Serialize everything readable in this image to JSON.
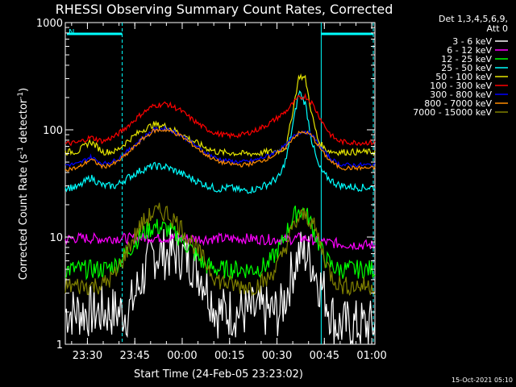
{
  "chart_data": {
    "type": "line",
    "title": "RHESSI Observing Summary Count Rates, Corrected",
    "xlabel": "Start Time (24-Feb-05 23:23:02)",
    "ylabel_main": "Corrected Count Rate (s",
    "ylabel_sup1": "-1",
    "ylabel_mid": " detector",
    "ylabel_sup2": "-1",
    "ylabel_end": ")",
    "yscale": "log",
    "ylim": [
      1,
      1000
    ],
    "xlim_minutes": [
      0,
      98
    ],
    "x_ticks": [
      {
        "t": 7,
        "label": "23:30"
      },
      {
        "t": 22,
        "label": "23:45"
      },
      {
        "t": 37,
        "label": "00:00"
      },
      {
        "t": 52,
        "label": "00:15"
      },
      {
        "t": 67,
        "label": "00:30"
      },
      {
        "t": 82,
        "label": "00:45"
      },
      {
        "t": 97,
        "label": "01:00"
      }
    ],
    "y_ticks": [
      {
        "v": 1,
        "label": "1"
      },
      {
        "v": 10,
        "label": "10"
      },
      {
        "v": 100,
        "label": "100"
      },
      {
        "v": 1000,
        "label": "1000"
      }
    ],
    "legend_header": [
      "Det 1,3,4,5,6,9,",
      "Att 0"
    ],
    "legend_placement": "right",
    "annotation_N": "N",
    "footer_date": "15-Oct-2021 05:10",
    "x": [
      0,
      4,
      8,
      12,
      16,
      20,
      24,
      28,
      32,
      36,
      40,
      44,
      48,
      52,
      56,
      60,
      64,
      68,
      70,
      72,
      74,
      76,
      78,
      80,
      82,
      84,
      86,
      88,
      92,
      96,
      98
    ],
    "series": [
      {
        "name": "3 - 6 keV",
        "color": "#ffffff",
        "values": [
          2,
          2,
          2,
          2,
          2,
          2,
          4,
          7,
          7,
          7,
          6,
          4,
          2,
          2,
          2,
          2,
          2,
          2,
          3,
          5,
          7,
          7,
          6,
          4,
          3,
          2,
          1.5,
          1.5,
          1.5,
          1.5,
          1.5
        ]
      },
      {
        "name": "6 - 12 keV",
        "color": "#ff00ff",
        "values": [
          9.5,
          9.8,
          9.7,
          9.6,
          9.8,
          9.7,
          9.8,
          9.9,
          9.8,
          9.8,
          9.7,
          9.6,
          9.7,
          9.6,
          9.7,
          9.6,
          9.5,
          9.5,
          9.4,
          9.6,
          9.8,
          9.7,
          9.5,
          9.2,
          9.0,
          8.8,
          8.7,
          8.6,
          8.5,
          8.4,
          8.4
        ]
      },
      {
        "name": "12 - 25 keV",
        "color": "#00ff00",
        "values": [
          5,
          5,
          5,
          5,
          5.5,
          7.5,
          10.5,
          12.5,
          12,
          10,
          7.5,
          5.5,
          5,
          5,
          5,
          5,
          5.5,
          8,
          11,
          15,
          18,
          17,
          13,
          9,
          6.5,
          5.5,
          5,
          5,
          5,
          5,
          5
        ]
      },
      {
        "name": "25 - 50 keV",
        "color": "#00ffff",
        "values": [
          29,
          29,
          36,
          30,
          30,
          36,
          42,
          46,
          45,
          40,
          35,
          31,
          28,
          29,
          27,
          28,
          31,
          37,
          55,
          110,
          230,
          175,
          80,
          47,
          38,
          34,
          31,
          30,
          29,
          29,
          29
        ]
      },
      {
        "name": "50 - 100 keV",
        "color": "#e6e600",
        "values": [
          62,
          63,
          78,
          62,
          63,
          80,
          98,
          112,
          108,
          94,
          80,
          69,
          62,
          61,
          60,
          60,
          62,
          64,
          70,
          150,
          320,
          300,
          140,
          80,
          67,
          63,
          62,
          62,
          62,
          62,
          62
        ]
      },
      {
        "name": "100 - 300 keV",
        "color": "#ff0000",
        "values": [
          74,
          76,
          85,
          78,
          88,
          110,
          140,
          168,
          175,
          155,
          126,
          104,
          92,
          88,
          90,
          98,
          112,
          135,
          150,
          175,
          200,
          205,
          180,
          140,
          110,
          90,
          80,
          77,
          76,
          76,
          76
        ]
      },
      {
        "name": "300 - 800 keV",
        "color": "#0000ff",
        "values": [
          47,
          48,
          56,
          48,
          52,
          64,
          82,
          100,
          103,
          92,
          76,
          62,
          54,
          51,
          50,
          52,
          57,
          66,
          72,
          85,
          95,
          97,
          90,
          74,
          62,
          54,
          49,
          47,
          47,
          47,
          47
        ]
      },
      {
        "name": "800 - 7000 keV",
        "color": "#ff8c00",
        "values": [
          43,
          44,
          53,
          45,
          49,
          61,
          80,
          98,
          100,
          90,
          74,
          60,
          51,
          48,
          47,
          49,
          54,
          62,
          70,
          84,
          93,
          95,
          88,
          72,
          59,
          51,
          46,
          44,
          44,
          44,
          44
        ]
      },
      {
        "name": "7000 - 15000 keV",
        "color": "#808000",
        "values": [
          3.5,
          3.5,
          3.5,
          3.6,
          4.5,
          8,
          13,
          17,
          17,
          13,
          9,
          6,
          4,
          3.6,
          3.5,
          3.5,
          4,
          6,
          8.5,
          12,
          15,
          16,
          14,
          10,
          6.5,
          4.5,
          3.8,
          3.5,
          3.5,
          3.5,
          3.5
        ]
      }
    ]
  }
}
